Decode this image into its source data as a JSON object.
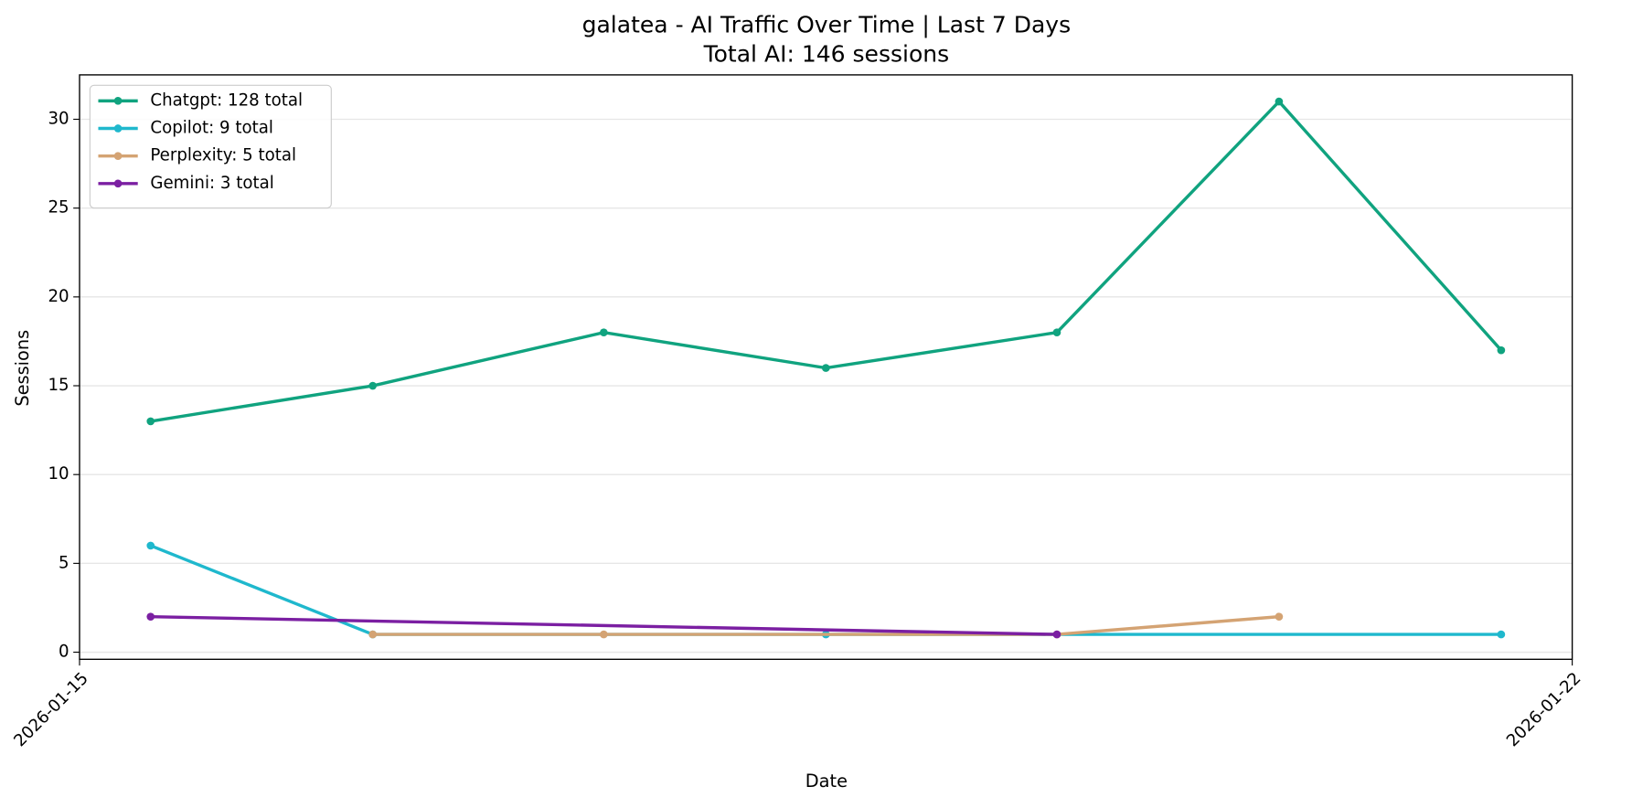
{
  "chart_data": {
    "type": "line",
    "title": "galatea - AI Traffic Over Time | Last 7 Days",
    "subtitle": "Total AI: 146 sessions",
    "x_label": "Date",
    "y_label": "Sessions",
    "xlim": [
      "2026-01-15",
      "2026-01-22"
    ],
    "xticks": [
      "2026-01-15",
      "2026-01-22"
    ],
    "ylim": [
      -0.4,
      32.5
    ],
    "yticks": [
      0,
      5,
      10,
      15,
      20,
      25,
      30
    ],
    "grid": true,
    "legend": "upper left",
    "series": [
      {
        "name": "Chatgpt: 128 total",
        "color": "#10a37f",
        "x": [
          "2026-01-15T08:00",
          "2026-01-16T09:00",
          "2026-01-17T11:00",
          "2026-01-18T12:00",
          "2026-01-19T14:00",
          "2026-01-20T15:00",
          "2026-01-21T16:00"
        ],
        "values": [
          13,
          15,
          18,
          16,
          18,
          31,
          17
        ]
      },
      {
        "name": "Copilot: 9 total",
        "color": "#1fb8cd",
        "x": [
          "2026-01-15T08:00",
          "2026-01-16T09:00",
          "2026-01-18T12:00",
          "2026-01-21T16:00"
        ],
        "values": [
          6,
          1,
          1,
          1
        ]
      },
      {
        "name": "Perplexity: 5 total",
        "color": "#d4a373",
        "x": [
          "2026-01-16T09:00",
          "2026-01-17T11:00",
          "2026-01-19T14:00",
          "2026-01-20T15:00"
        ],
        "values": [
          1,
          1,
          1,
          2
        ]
      },
      {
        "name": "Gemini: 3 total",
        "color": "#7b1fa2",
        "x": [
          "2026-01-15T08:00",
          "2026-01-19T14:00"
        ],
        "values": [
          2,
          1
        ]
      }
    ]
  }
}
